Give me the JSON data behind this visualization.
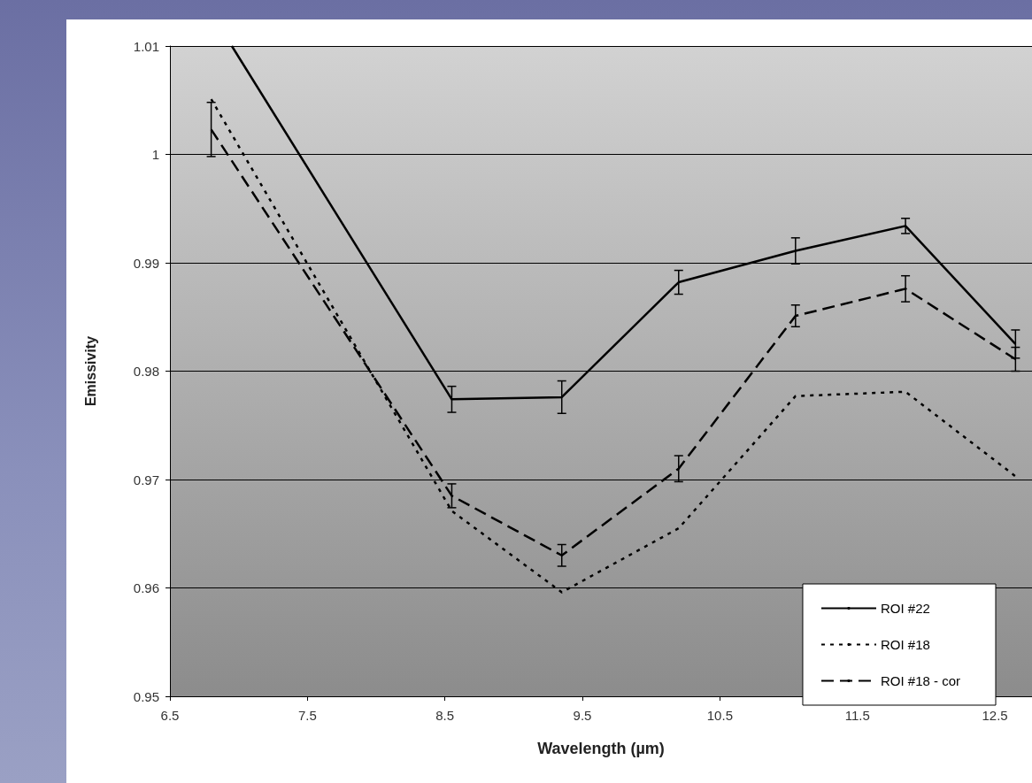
{
  "chart_data": {
    "type": "line",
    "xlabel": "Wavelength (µm)",
    "ylabel": "Emissivity",
    "x": [
      6.8,
      8.55,
      9.35,
      10.2,
      11.05,
      11.85,
      12.65
    ],
    "xlim": [
      6.5,
      12.77
    ],
    "xticks": [
      6.5,
      7.5,
      8.5,
      9.5,
      10.5,
      11.5,
      12.5
    ],
    "ylim": [
      0.95,
      1.01
    ],
    "yticks": [
      0.95,
      0.96,
      0.97,
      0.98,
      0.99,
      1,
      1.01
    ],
    "grid": "y",
    "legend": "bottom right",
    "marker": "none",
    "series": [
      {
        "name": "ROI #22",
        "color": "#000000",
        "line_style": "solid",
        "x": [
          6.95,
          8.55,
          9.35,
          10.2,
          11.05,
          11.85,
          12.65
        ],
        "values": [
          1.01,
          0.9774,
          0.9776,
          0.9882,
          0.9911,
          0.9934,
          0.9825
        ],
        "errors": [
          null,
          0.0012,
          0.0015,
          0.0011,
          0.0012,
          0.0007,
          0.0013
        ]
      },
      {
        "name": "ROI #18",
        "color": "#000000",
        "line_style": "dotted",
        "values": [
          1.0051,
          0.9671,
          0.9596,
          0.9655,
          0.9777,
          0.9781,
          0.9703
        ]
      },
      {
        "name": "ROI #18 - cor",
        "color": "#000000",
        "line_style": "dashed",
        "values": [
          1.0023,
          0.9685,
          0.963,
          0.971,
          0.9851,
          0.9876,
          0.9811
        ],
        "errors": [
          0.0025,
          0.0011,
          0.001,
          0.0012,
          0.001,
          0.0012,
          0.0011
        ]
      }
    ]
  }
}
